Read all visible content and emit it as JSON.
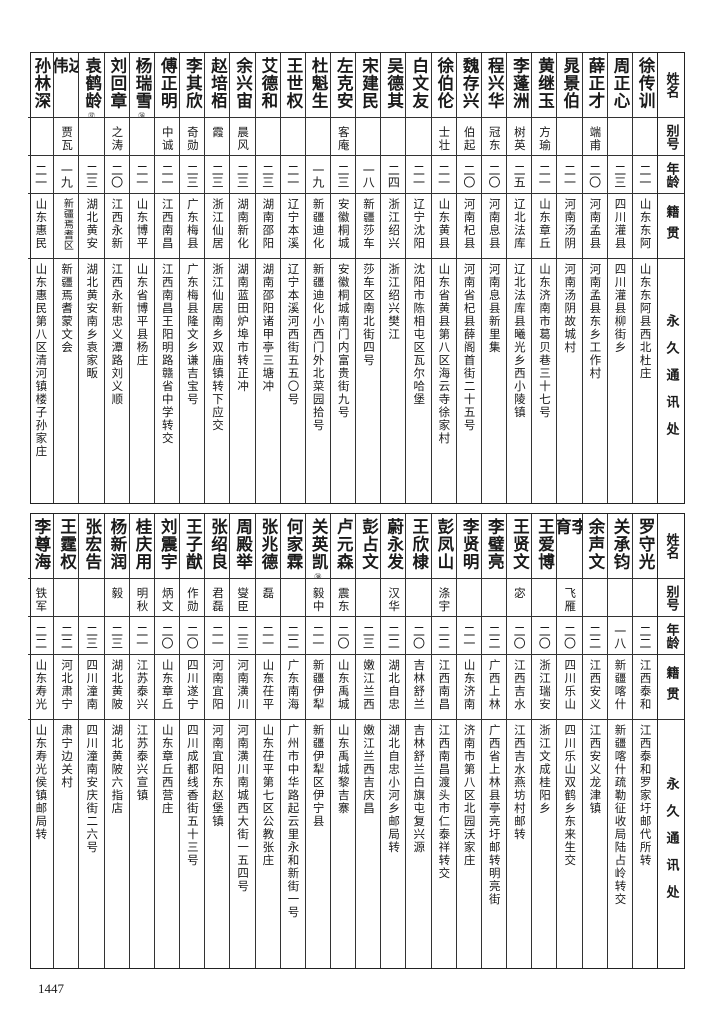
{
  "headers": {
    "name": "姓名",
    "alias": "别号",
    "age": "年龄",
    "hometown": "籍贯",
    "address": "永久通讯处"
  },
  "page_number": "1447",
  "tables": [
    {
      "rows": [
        {
          "name": "徐传训",
          "alias": "",
          "age": "二一",
          "hometown": "山东东阿",
          "address": "山东东阿县西北杜庄"
        },
        {
          "name": "周正心",
          "alias": "",
          "age": "二三",
          "hometown": "四川灌县",
          "address": "四川灌县柳街乡"
        },
        {
          "name": "薛正才",
          "alias": "端甫",
          "age": "二〇",
          "hometown": "河南孟县",
          "address": "河南孟县东乡工作村"
        },
        {
          "name": "晁景伯",
          "alias": "",
          "age": "二一",
          "hometown": "河南汤阴",
          "address": "河南汤阴故城村"
        },
        {
          "name": "黄继玉",
          "alias": "方瑜",
          "age": "二一",
          "hometown": "山东章丘",
          "address": "山东济南市葛贝巷三十七号"
        },
        {
          "name": "李蓬洲",
          "alias": "树英",
          "age": "二五",
          "hometown": "辽北法库",
          "address": "辽北法库县曦光乡西小陵镇"
        },
        {
          "name": "程兴华",
          "alias": "冠东",
          "age": "二〇",
          "hometown": "河南息县",
          "address": "河南息县新里集"
        },
        {
          "name": "魏存兴",
          "alias": "伯起",
          "age": "二〇",
          "hometown": "河南杞县",
          "address": "河南省杞县薛阁首街二十五号"
        },
        {
          "name": "徐伯伦",
          "alias": "士壮",
          "age": "二一",
          "hometown": "山东黄县",
          "address": "山东省黄县第八区海云寺徐家村"
        },
        {
          "name": "白文友",
          "alias": "",
          "age": "二一",
          "hometown": "辽宁沈阳",
          "address": "沈阳市陈相屯区瓦尔哈堡"
        },
        {
          "name": "吴德其",
          "alias": "",
          "age": "二四",
          "hometown": "浙江绍兴",
          "address": "浙江绍兴樊江"
        },
        {
          "name": "宋建民",
          "alias": "",
          "age": "一八",
          "hometown": "新疆莎车",
          "address": "莎车区南北街四号"
        },
        {
          "name": "左克安",
          "alias": "客庵",
          "age": "二三",
          "hometown": "安徽桐城",
          "address": "安徽桐城南门内富贵街九号"
        },
        {
          "name": "杜魁生",
          "alias": "",
          "age": "一九",
          "hometown": "新疆迪化",
          "address": "新疆迪化小西门外北菜园拾号"
        },
        {
          "name": "王世权",
          "alias": "",
          "age": "二一",
          "hometown": "辽宁本溪",
          "address": "辽宁本溪河西街五五〇号"
        },
        {
          "name": "艾德和",
          "alias": "",
          "age": "二三",
          "hometown": "湖南邵阳",
          "address": "湖南邵阳诸甲亭三塘冲"
        },
        {
          "name": "余兴宙",
          "alias": "晨风",
          "age": "二三",
          "hometown": "湖南新化",
          "address": "湖南蓝田炉埠市转正冲"
        },
        {
          "name": "赵培栢",
          "alias": "霞",
          "age": "二三",
          "hometown": "浙江仙居",
          "address": "浙江仙居南乡双庙镇转下应交"
        },
        {
          "name": "李其欣",
          "alias": "奇勋",
          "age": "二三",
          "hometown": "广东梅县",
          "address": "广东梅县隆文乡谦吉宝号"
        },
        {
          "name": "傅正明",
          "alias": "中诚",
          "age": "二一",
          "hometown": "江西南昌",
          "address": "江西南昌王阳明路赣省中学转交"
        },
        {
          "name": "杨瑞雪",
          "note": "㊱",
          "alias": "",
          "age": "二一",
          "hometown": "山东博平",
          "address": "山东省博平县杨庄"
        },
        {
          "name": "刘回章",
          "alias": "之涛",
          "age": "二〇",
          "hometown": "江西永新",
          "address": "江西永新忠义潭路刘义顺"
        },
        {
          "name": "袁鹤龄",
          "note": "㊲",
          "alias": "",
          "age": "二三",
          "hometown": "湖北黄安",
          "address": "湖北黄安南乡袁家畈"
        },
        {
          "name": "达伟",
          "alias": "贾瓦",
          "age": "一九",
          "hometown": "新疆焉耆区",
          "address": "新疆焉耆蒙文会"
        },
        {
          "name": "孙林深",
          "alias": "",
          "age": "二一",
          "hometown": "山东惠民",
          "address": "山东惠民第八区清河镇楼子孙家庄"
        }
      ]
    },
    {
      "rows": [
        {
          "name": "罗守光",
          "alias": "",
          "age": "二二",
          "hometown": "江西泰和",
          "address": "江西泰和罗家圩邮代所转"
        },
        {
          "name": "关承钧",
          "alias": "",
          "age": "一八",
          "hometown": "新疆喀什",
          "address": "新疆喀什疏勒征收局陆占岭转交"
        },
        {
          "name": "余声文",
          "alias": "",
          "age": "二二",
          "hometown": "江西安义",
          "address": "江西安义龙津镇"
        },
        {
          "name": "李育",
          "alias": "飞雁",
          "age": "二〇",
          "hometown": "四川乐山",
          "address": "四川乐山双鹤乡东来生交"
        },
        {
          "name": "王爱博",
          "alias": "",
          "age": "二〇",
          "hometown": "浙江瑞安",
          "address": "浙江文成桂阳乡"
        },
        {
          "name": "王贤文",
          "alias": "宓",
          "age": "二〇",
          "hometown": "江西吉水",
          "address": "江西吉水燕坊村邮转"
        },
        {
          "name": "李璧亮",
          "alias": "",
          "age": "二二",
          "hometown": "广西上林",
          "address": "广西省上林县亭亮圩邮转明亮街"
        },
        {
          "name": "李贤明",
          "alias": "",
          "age": "二一",
          "hometown": "山东济南",
          "address": "济南市第八区北园沃家庄"
        },
        {
          "name": "彭凤山",
          "alias": "涤宇",
          "age": "二二",
          "hometown": "江西南昌",
          "address": "江西南昌渡头市仁泰祥转交"
        },
        {
          "name": "王欣棣",
          "alias": "",
          "age": "二〇",
          "hometown": "吉林舒兰",
          "address": "吉林舒兰白旗屯复兴源"
        },
        {
          "name": "蔚永发",
          "alias": "汉华",
          "age": "二二",
          "hometown": "湖北自忠",
          "address": "湖北自忠小河乡邮局转"
        },
        {
          "name": "彭占文",
          "alias": "",
          "age": "二三",
          "hometown": "嫩江兰西",
          "address": "嫩江兰西吉庆昌"
        },
        {
          "name": "卢元森",
          "alias": "震东",
          "age": "二〇",
          "hometown": "山东禹城",
          "address": "山东禹城黎吉寨"
        },
        {
          "name": "关英凯",
          "note": "㊳",
          "alias": "毅中",
          "age": "二一",
          "hometown": "新疆伊犁",
          "address": "新疆伊犁区伊宁县"
        },
        {
          "name": "何家霖",
          "alias": "",
          "age": "二二",
          "hometown": "广东南海",
          "address": "广州市中华路起云里永和新街一号"
        },
        {
          "name": "张兆德",
          "alias": "磊",
          "age": "二一",
          "hometown": "山东茌平",
          "address": "山东茌平第七区公教张庄"
        },
        {
          "name": "周殿举",
          "alias": "燮臣",
          "age": "二三",
          "hometown": "河南潢川",
          "address": "河南潢川南城西大街一五四号"
        },
        {
          "name": "张绍良",
          "alias": "君磊",
          "age": "二一",
          "hometown": "河南宜阳",
          "address": "河南宜阳东赵堡镇"
        },
        {
          "name": "王子猷",
          "alias": "作勋",
          "age": "二〇",
          "hometown": "四川遂宁",
          "address": "四川成都线香街五十三号"
        },
        {
          "name": "刘震宇",
          "alias": "炳文",
          "age": "二〇",
          "hometown": "山东章丘",
          "address": "山东章丘西营庄"
        },
        {
          "name": "桂庆用",
          "alias": "明秋",
          "age": "二一",
          "hometown": "江苏泰兴",
          "address": "江苏泰兴宣镇"
        },
        {
          "name": "杨新润",
          "alias": "毅",
          "age": "二三",
          "hometown": "湖北黄陂",
          "address": "湖北黄陂六指店"
        },
        {
          "name": "张宏告",
          "alias": "",
          "age": "二三",
          "hometown": "四川潼南",
          "address": "四川潼南安庆街二六号"
        },
        {
          "name": "王霆权",
          "alias": "",
          "age": "二二",
          "hometown": "河北肃宁",
          "address": "肃宁边关村"
        },
        {
          "name": "李尊海",
          "alias": "铁军",
          "age": "二二",
          "hometown": "山东寿光",
          "address": "山东寿光侯镇邮局转"
        }
      ]
    }
  ]
}
